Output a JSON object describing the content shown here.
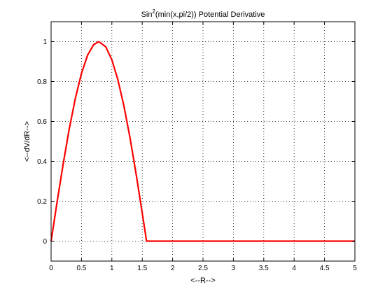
{
  "chart_data": {
    "type": "line",
    "title_prefix": "Sin",
    "title_sup": "2",
    "title_suffix": "(min(x,pi/2)) Potential Derivative",
    "xlabel": "<--R-->",
    "ylabel": "<--dV/dR-->",
    "xlim": [
      0,
      5
    ],
    "ylim": [
      -0.1,
      1.1
    ],
    "xticks": [
      0,
      0.5,
      1,
      1.5,
      2,
      2.5,
      3,
      3.5,
      4,
      4.5,
      5
    ],
    "xtick_labels": [
      "0",
      "0.5",
      "1",
      "1.5",
      "2",
      "2.5",
      "3",
      "3.5",
      "4",
      "4.5",
      "5"
    ],
    "yticks": [
      0,
      0.2,
      0.4,
      0.6,
      0.8,
      1
    ],
    "ytick_labels": [
      "0",
      "0.2",
      "0.4",
      "0.6",
      "0.8",
      "1"
    ],
    "grid": true,
    "series": [
      {
        "color": "#ff0000",
        "x": [
          0,
          0.1,
          0.2,
          0.3,
          0.4,
          0.5,
          0.6,
          0.7,
          0.785,
          0.9,
          1.0,
          1.1,
          1.2,
          1.3,
          1.4,
          1.5,
          1.55,
          1.571,
          1.6,
          2,
          2.5,
          3,
          3.5,
          4,
          4.5,
          5
        ],
        "y": [
          0,
          0.199,
          0.389,
          0.565,
          0.717,
          0.841,
          0.932,
          0.985,
          1.0,
          0.974,
          0.909,
          0.808,
          0.675,
          0.516,
          0.335,
          0.141,
          0.042,
          0.0,
          0,
          0,
          0,
          0,
          0,
          0,
          0,
          0
        ]
      }
    ]
  }
}
